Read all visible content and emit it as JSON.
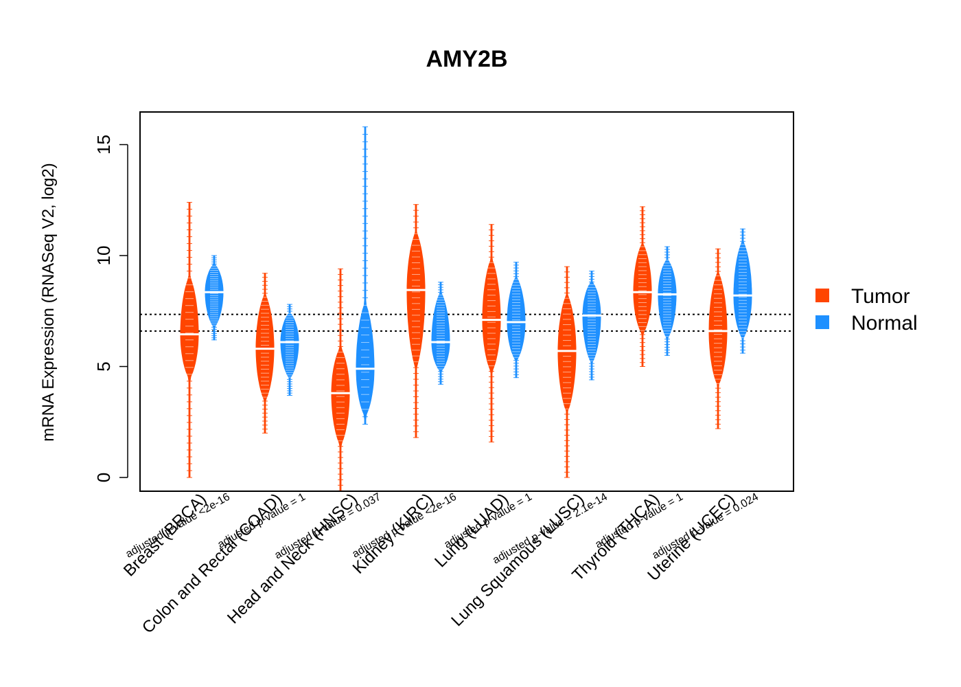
{
  "chart_data": {
    "type": "violin",
    "title": "AMY2B",
    "ylabel": "mRNA Expression (RNASeq V2, log2)",
    "xlabel": "",
    "ylim": [
      -0.6,
      16.5
    ],
    "yticks": [
      0,
      5,
      10,
      15
    ],
    "reference_lines": [
      7.35,
      6.6
    ],
    "legend": {
      "position": "right",
      "entries": [
        {
          "name": "Tumor",
          "color": "#FF4500"
        },
        {
          "name": "Normal",
          "color": "#1E90FF"
        }
      ]
    },
    "categories": [
      {
        "label": "Breast (BRCA)",
        "pvalue": "adjusted p-value <2e-16",
        "tumor": {
          "min": 0.0,
          "max": 12.4,
          "median": 6.45,
          "core": [
            4.5,
            9.0
          ]
        },
        "normal": {
          "min": 6.2,
          "max": 10.0,
          "median": 8.35,
          "core": [
            6.8,
            9.6
          ]
        }
      },
      {
        "label": "Colon and Rectal (COAD)",
        "pvalue": "adjusted p-value = 1",
        "tumor": {
          "min": 2.0,
          "max": 9.2,
          "median": 5.8,
          "core": [
            3.5,
            8.2
          ]
        },
        "normal": {
          "min": 3.7,
          "max": 7.8,
          "median": 6.1,
          "core": [
            4.5,
            7.4
          ]
        }
      },
      {
        "label": "Head and Neck (HNSC)",
        "pvalue": "adjusted p-value = 0.037",
        "tumor": {
          "min": -0.6,
          "max": 9.4,
          "median": 3.8,
          "core": [
            1.5,
            5.8
          ]
        },
        "normal": {
          "min": 2.4,
          "max": 15.8,
          "median": 4.9,
          "core": [
            2.8,
            7.8
          ]
        }
      },
      {
        "label": "Kidney (KIRC)",
        "pvalue": "adjusted p-value <2e-16",
        "tumor": {
          "min": 1.8,
          "max": 12.3,
          "median": 8.45,
          "core": [
            5.0,
            11.0
          ]
        },
        "normal": {
          "min": 4.2,
          "max": 8.8,
          "median": 6.1,
          "core": [
            4.8,
            8.3
          ]
        }
      },
      {
        "label": "Lung (LUAD)",
        "pvalue": "adjusted p-value = 1",
        "tumor": {
          "min": 1.6,
          "max": 11.4,
          "median": 7.1,
          "core": [
            4.8,
            9.8
          ]
        },
        "normal": {
          "min": 4.5,
          "max": 9.7,
          "median": 7.0,
          "core": [
            5.3,
            9.0
          ]
        }
      },
      {
        "label": "Lung Squamous (LUSC)",
        "pvalue": "adjusted p-value = 2.1e-14",
        "tumor": {
          "min": 0.0,
          "max": 9.5,
          "median": 5.7,
          "core": [
            3.0,
            8.2
          ]
        },
        "normal": {
          "min": 4.4,
          "max": 9.3,
          "median": 7.3,
          "core": [
            5.2,
            8.8
          ]
        }
      },
      {
        "label": "Thyroid (THCA)",
        "pvalue": "adjusted p-value = 1",
        "tumor": {
          "min": 5.0,
          "max": 12.2,
          "median": 8.35,
          "core": [
            6.5,
            10.5
          ]
        },
        "normal": {
          "min": 5.5,
          "max": 10.4,
          "median": 8.25,
          "core": [
            6.3,
            9.8
          ]
        }
      },
      {
        "label": "Uterine (UCEC)",
        "pvalue": "adjusted p-value = 0.024",
        "tumor": {
          "min": 2.2,
          "max": 10.3,
          "median": 6.6,
          "core": [
            4.2,
            9.2
          ]
        },
        "normal": {
          "min": 5.6,
          "max": 11.2,
          "median": 8.2,
          "core": [
            6.3,
            10.6
          ]
        }
      }
    ]
  }
}
